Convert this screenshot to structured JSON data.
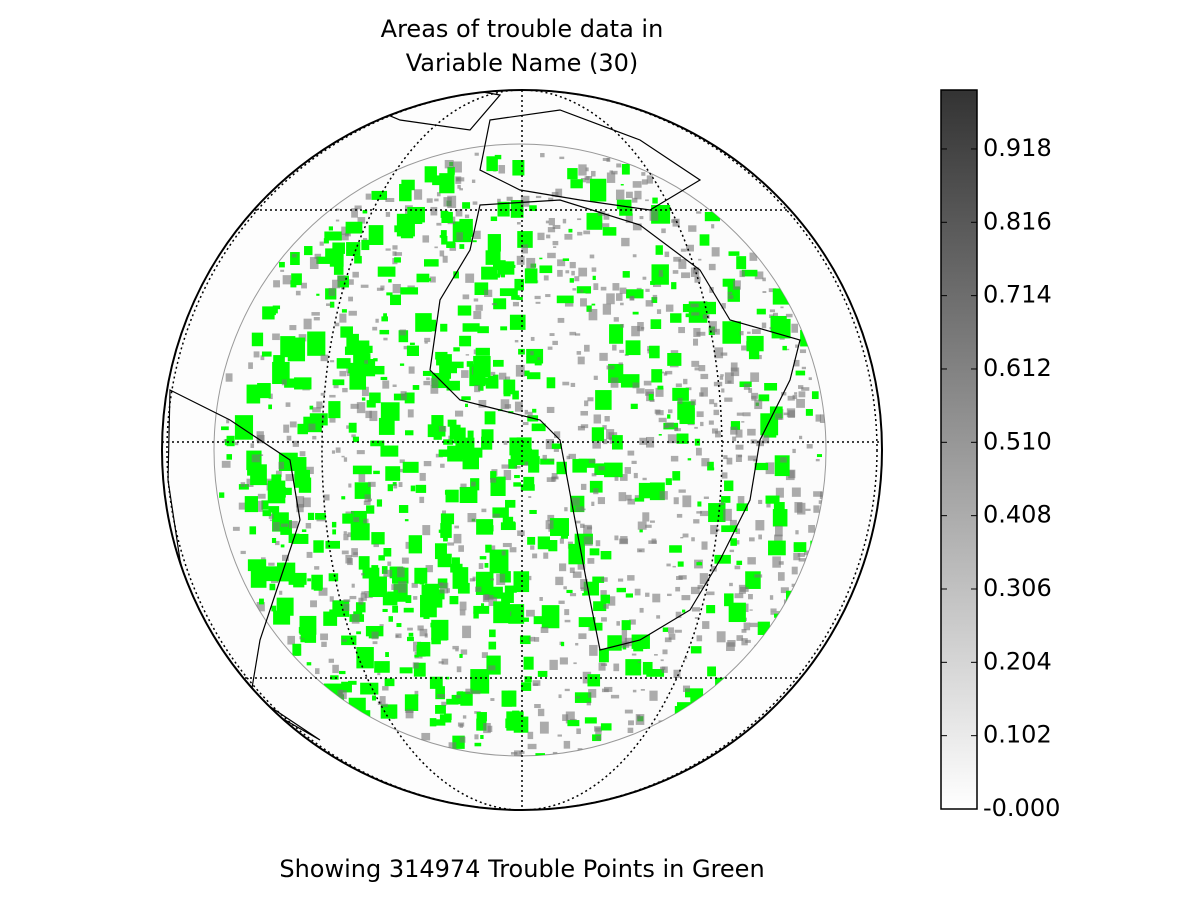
{
  "title": [
    "Areas of trouble data in",
    "Variable Name (30)"
  ],
  "caption": "Showing 314974 Trouble Points in Green",
  "colorbar": {
    "lim": [
      0,
      1
    ],
    "ticks": [
      {
        "value": 0,
        "label": "-0.000"
      },
      0.102,
      0.204,
      0.306,
      0.408,
      {
        "value": 0.51,
        "label": "0.510"
      },
      0.612,
      0.714,
      0.816,
      0.918
    ]
  }
}
